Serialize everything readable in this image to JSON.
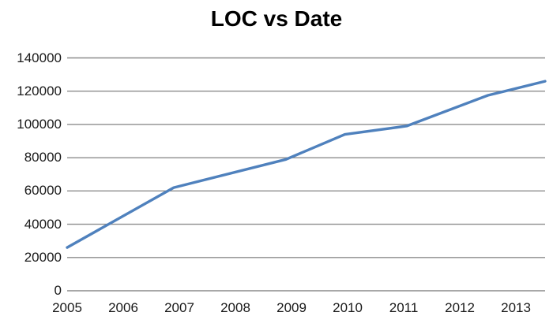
{
  "title": "LOC vs Date",
  "chart_data": {
    "type": "line",
    "title": "LOC vs Date",
    "xlabel": "",
    "ylabel": "",
    "x_tick_labels": [
      "2005",
      "2006",
      "2007",
      "2008",
      "2009",
      "2010",
      "2011",
      "2012",
      "2013"
    ],
    "y_ticks": [
      0,
      20000,
      40000,
      60000,
      80000,
      100000,
      120000,
      140000
    ],
    "y_tick_labels": [
      "0",
      "20000",
      "40000",
      "60000",
      "80000",
      "100000",
      "120000",
      "140000"
    ],
    "x_range": [
      2005,
      2013.52
    ],
    "y_range": [
      0,
      140000
    ],
    "grid": "horizontal",
    "legend": "none",
    "series": [
      {
        "name": "LOC",
        "color": "#4F81BD",
        "points": [
          {
            "x": 2005.0,
            "y": 26000
          },
          {
            "x": 2006.9,
            "y": 62000
          },
          {
            "x": 2008.9,
            "y": 79000
          },
          {
            "x": 2009.95,
            "y": 94000
          },
          {
            "x": 2011.05,
            "y": 99000
          },
          {
            "x": 2012.5,
            "y": 117500
          },
          {
            "x": 2013.52,
            "y": 126000
          }
        ]
      }
    ],
    "colors": {
      "gridline": "#8C8C8C",
      "axis_line": "#8C8C8C",
      "tick_label": "#1a1a1a",
      "title": "#000000",
      "background": "#FFFFFF"
    }
  }
}
